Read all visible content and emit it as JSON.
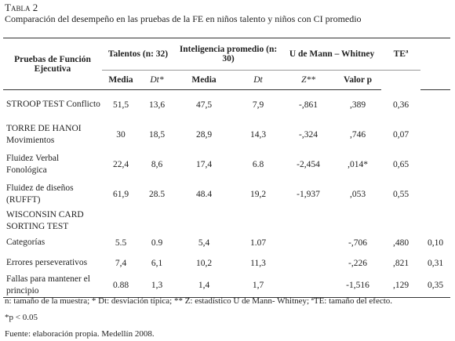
{
  "caption": {
    "label": "Tabla 2",
    "title": "Comparación del desempeño en las pruebas de la FE en niños talento y niños con CI promedio"
  },
  "table": {
    "header_groups": [
      "Pruebas de Función Ejecutiva",
      "Talentos (n: 32)",
      "Inteligencia promedio (n: 30)",
      "U de Mann – Whitney",
      "TEª"
    ],
    "subheaders": [
      "Media",
      "Dt*",
      "Media",
      "Dt",
      "Z**",
      "Valor p"
    ],
    "rows": [
      [
        "STROOP TEST Conflicto",
        "51,5",
        "13,6",
        "47,5",
        "7,9",
        "-,861",
        ",389",
        "0,36",
        null
      ],
      [
        "TORRE DE HANOI Movimientos",
        "30",
        "18,5",
        "28,9",
        "14,3",
        "-,324",
        ",746",
        "0,07",
        null
      ],
      [
        "Fluidez Verbal Fonológica",
        "22,4",
        "8,6",
        "17,4",
        "6.8",
        "-2,454",
        ",014*",
        "0,65",
        null
      ],
      [
        "Fluidez de diseños (RUFFT)",
        "61,9",
        "28.5",
        "48.4",
        "19,2",
        "-1,937",
        ",053",
        "0,55",
        null
      ],
      [
        "WISCONSIN CARD SORTING TEST",
        null,
        null,
        null,
        null,
        null,
        null,
        null,
        null
      ],
      [
        "Categorías",
        "5.5",
        "0.9",
        "5,4",
        "1.07",
        null,
        "-,706",
        ",480",
        "0,10"
      ],
      [
        "Errores perseverativos",
        "7,4",
        "6,1",
        "10,2",
        "11,3",
        null,
        "-,226",
        ",821",
        "0,31"
      ],
      [
        "Fallas para mantener el principio",
        "0.88",
        "1,3",
        "1,4",
        "1,7",
        null,
        "-1,516",
        ",129",
        "0,35"
      ]
    ]
  },
  "notes": [
    "n: tamaño de la muestra; * Dt: desviación típica; ** Z: estadístico U de Mann- Whitney; ªTE: tamaño del efecto.",
    "*p < 0.05",
    "Fuente: elaboración propia. Medellín 2008."
  ]
}
